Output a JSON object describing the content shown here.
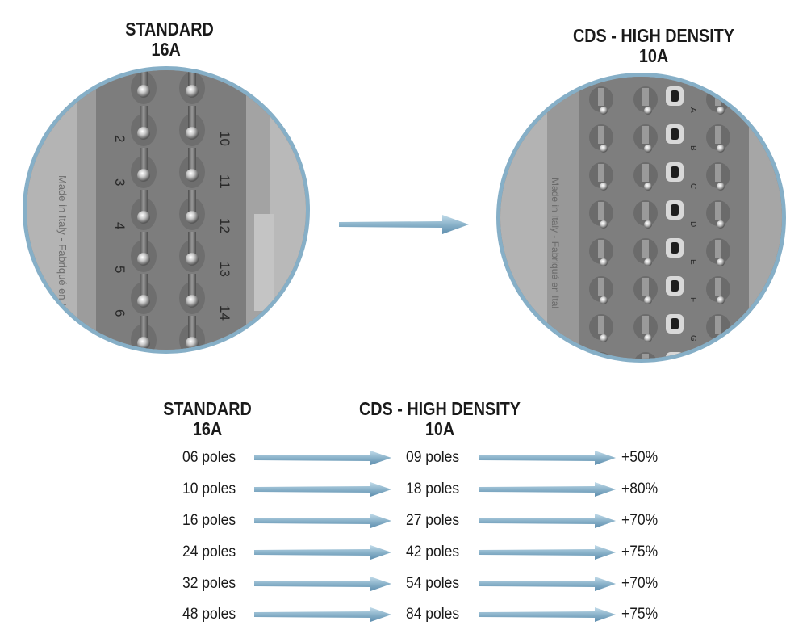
{
  "top_headings": {
    "left": {
      "line1": "STANDARD",
      "line2": "16A"
    },
    "right": {
      "line1": "CDS - HIGH DENSITY",
      "line2": "10A"
    }
  },
  "photos": {
    "left": {
      "numbers_left": [
        "2",
        "3",
        "4",
        "5",
        "6"
      ],
      "numbers_right": [
        "10",
        "11",
        "12",
        "13",
        "14"
      ],
      "side_text": "Made in Italy - Fabriqué en Ital"
    },
    "right": {
      "letters": [
        "A",
        "B",
        "C",
        "D",
        "E",
        "F",
        "G"
      ],
      "side_text": "Made in Italy - Fabriqué en Ital"
    }
  },
  "table": {
    "header_left": {
      "line1": "STANDARD",
      "line2": "16A"
    },
    "header_right": {
      "line1": "CDS - HIGH DENSITY",
      "line2": "10A"
    },
    "rows": [
      {
        "standard": "06 poles",
        "cds": "09 poles",
        "increase": "+50%"
      },
      {
        "standard": "10 poles",
        "cds": "18 poles",
        "increase": "+80%"
      },
      {
        "standard": "16 poles",
        "cds": "27 poles",
        "increase": "+70%"
      },
      {
        "standard": "24 poles",
        "cds": "42 poles",
        "increase": "+75%"
      },
      {
        "standard": "32 poles",
        "cds": "54 poles",
        "increase": "+70%"
      },
      {
        "standard": "48 poles",
        "cds": "84 poles",
        "increase": "+75%"
      }
    ]
  },
  "colors": {
    "arrow_light": "#a9cbe0",
    "arrow_dark": "#5e8eae",
    "circle_border": "#86afc7",
    "connector_gray": "#8a8a8a"
  }
}
